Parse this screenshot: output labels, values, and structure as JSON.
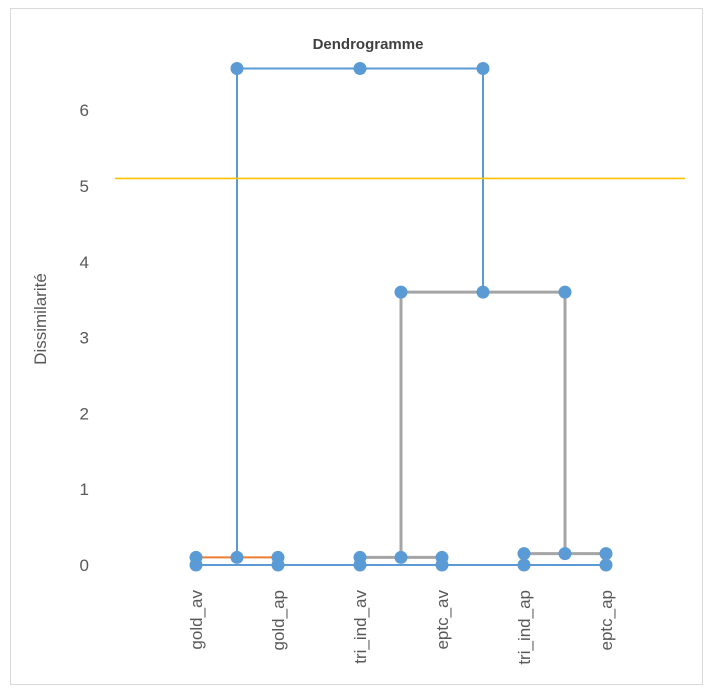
{
  "chart_data": {
    "type": "dendrogram",
    "title": "Dendrogramme",
    "xlabel": "",
    "ylabel": "Dissimilarité",
    "ylim": [
      0,
      6.6
    ],
    "yticks": [
      "0",
      "1",
      "2",
      "3",
      "4",
      "5",
      "6"
    ],
    "leaves": [
      "gold_av",
      "gold_ap",
      "tri_ind_av",
      "eptc_av",
      "tri_ind_ap",
      "eptc_ap"
    ],
    "merges": [
      {
        "left": "gold_av",
        "right": "gold_ap",
        "height": 0.1,
        "color": "#ed7d31"
      },
      {
        "left": "tri_ind_av",
        "right": "eptc_av",
        "height": 0.1,
        "color": "#a5a5a5"
      },
      {
        "left": "tri_ind_ap",
        "right": "eptc_ap",
        "height": 0.15,
        "color": "#a5a5a5"
      },
      {
        "left": "tri_ind_av + eptc_av",
        "right": "tri_ind_ap + eptc_ap",
        "height": 3.6,
        "color": "#a5a5a5"
      },
      {
        "left": "gold_av + gold_ap",
        "right": "tri_ind_av + eptc_av + tri_ind_ap + eptc_ap",
        "height": 6.55,
        "color": "#5b9bd5"
      }
    ],
    "truncation_line": {
      "value": 5.1,
      "color": "#ffc000"
    },
    "node_color": "#5b9bd5",
    "grid": false,
    "legend": "none"
  }
}
